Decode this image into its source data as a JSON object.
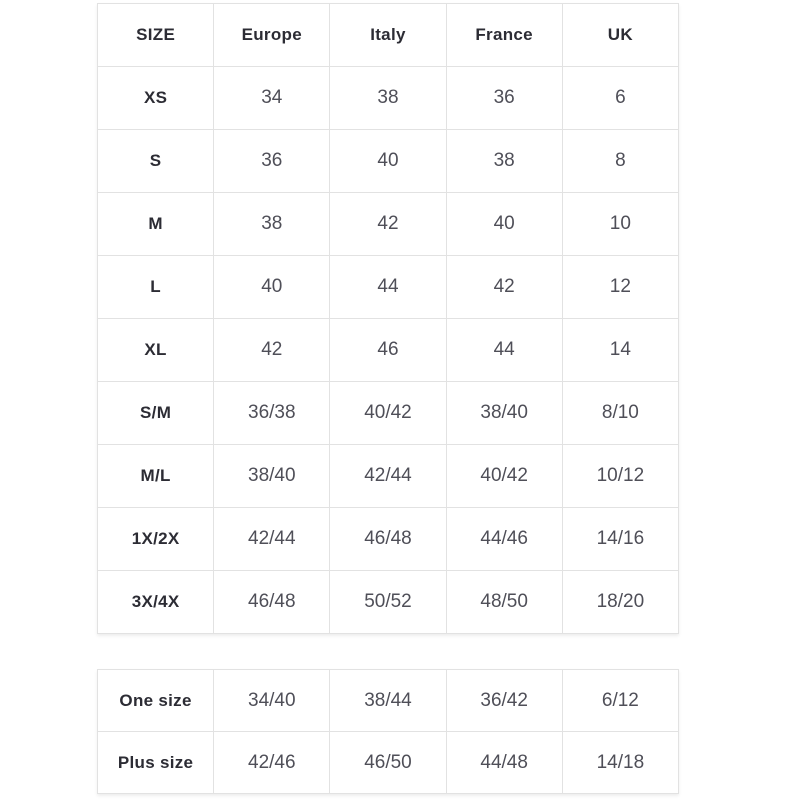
{
  "colors": {
    "background": "#ffffff",
    "border": "#e2e2e2",
    "header_text": "#2c2c34",
    "value_text": "#4f4f58"
  },
  "chart_data": [
    {
      "type": "table",
      "columns": [
        "SIZE",
        "Europe",
        "Italy",
        "France",
        "UK"
      ],
      "rows": [
        {
          "label": "XS",
          "values": [
            "34",
            "38",
            "36",
            "6"
          ]
        },
        {
          "label": "S",
          "values": [
            "36",
            "40",
            "38",
            "8"
          ]
        },
        {
          "label": "M",
          "values": [
            "38",
            "42",
            "40",
            "10"
          ]
        },
        {
          "label": "L",
          "values": [
            "40",
            "44",
            "42",
            "12"
          ]
        },
        {
          "label": "XL",
          "values": [
            "42",
            "46",
            "44",
            "14"
          ]
        },
        {
          "label": "S/M",
          "values": [
            "36/38",
            "40/42",
            "38/40",
            "8/10"
          ]
        },
        {
          "label": "M/L",
          "values": [
            "38/40",
            "42/44",
            "40/42",
            "10/12"
          ]
        },
        {
          "label": "1X/2X",
          "values": [
            "42/44",
            "46/48",
            "44/46",
            "14/16"
          ]
        },
        {
          "label": "3X/4X",
          "values": [
            "46/48",
            "50/52",
            "48/50",
            "18/20"
          ]
        }
      ]
    },
    {
      "type": "table",
      "columns": [],
      "rows": [
        {
          "label": "One size",
          "values": [
            "34/40",
            "38/44",
            "36/42",
            "6/12"
          ]
        },
        {
          "label": "Plus size",
          "values": [
            "42/46",
            "46/50",
            "44/48",
            "14/18"
          ]
        }
      ]
    }
  ]
}
